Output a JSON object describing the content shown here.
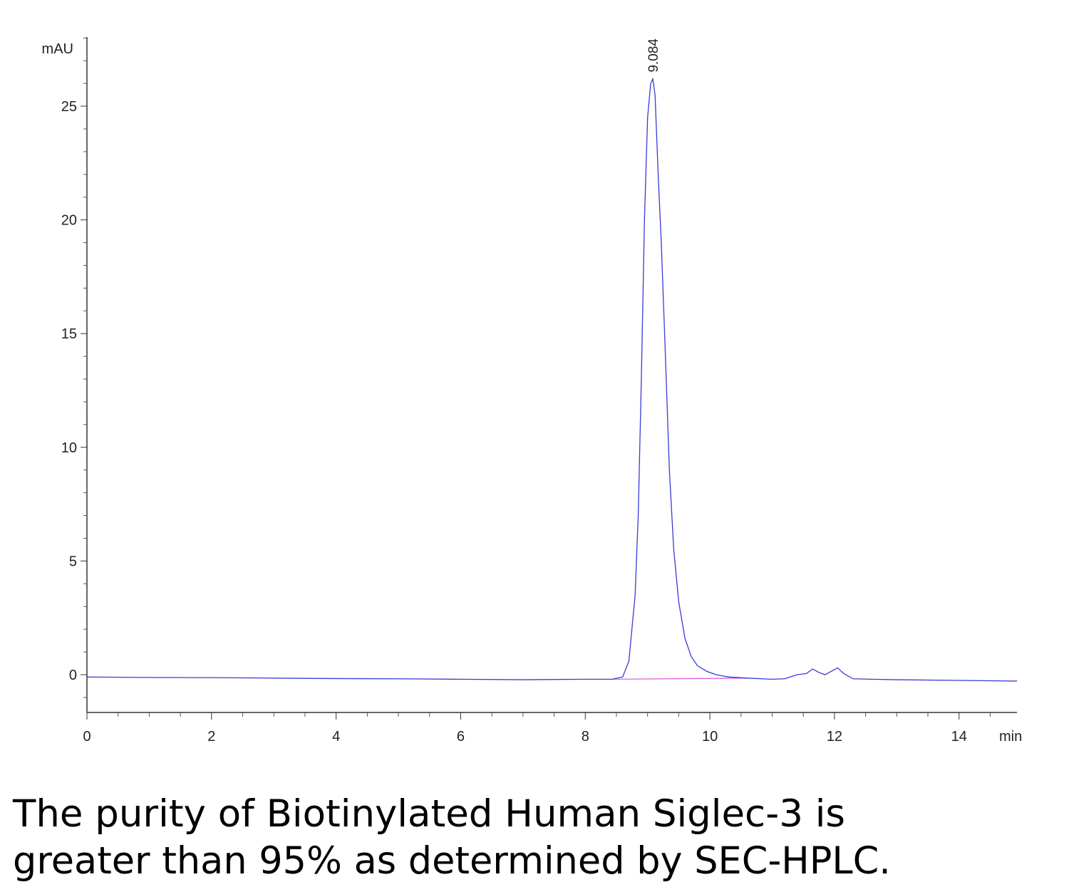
{
  "chart_data": {
    "type": "line",
    "ylabel": "mAU",
    "xlabel": "min",
    "annotations": [
      {
        "text": "9.084",
        "x": 9.084
      }
    ],
    "caption": [
      "The purity of Biotinylated Human Siglec-3 is",
      "greater than 95% as determined by SEC-HPLC."
    ],
    "xlim": [
      0,
      14.93
    ],
    "ylim": [
      -1.66,
      28.04
    ],
    "xticks": [
      0,
      2,
      4,
      6,
      8,
      10,
      12,
      14
    ],
    "yticks": [
      0,
      5,
      10,
      15,
      20,
      25
    ],
    "xminorticks": [
      0.5,
      1,
      1.5,
      2.5,
      3,
      3.5,
      4.5,
      5,
      5.5,
      6.5,
      7,
      7.5,
      8.5,
      9,
      9.5,
      10.5,
      11,
      11.5,
      12.5,
      13,
      13.5,
      14.5
    ],
    "yminorticks": [
      -1,
      1,
      2,
      3,
      4,
      6,
      7,
      8,
      9,
      11,
      12,
      13,
      14,
      16,
      17,
      18,
      19,
      21,
      22,
      23,
      24,
      26,
      27,
      28
    ],
    "grid": false,
    "series": [
      {
        "color": "#3a3ad8",
        "x": [
          0,
          1,
          2,
          3,
          4,
          5,
          6,
          7,
          8,
          8.43,
          8.6,
          8.7,
          8.8,
          8.85,
          8.9,
          8.95,
          9.0,
          9.05,
          9.084,
          9.12,
          9.17,
          9.22,
          9.28,
          9.35,
          9.42,
          9.5,
          9.6,
          9.7,
          9.8,
          9.95,
          10.1,
          10.3,
          10.6,
          11,
          11.2,
          11.4,
          11.55,
          11.65,
          11.75,
          11.85,
          11.95,
          12.05,
          12.15,
          12.3,
          12.6,
          13,
          14,
          14.93
        ],
        "values": [
          -0.1,
          -0.12,
          -0.13,
          -0.15,
          -0.17,
          -0.18,
          -0.2,
          -0.22,
          -0.2,
          -0.2,
          -0.1,
          0.6,
          3.5,
          7,
          13,
          20,
          24.5,
          26,
          26.2,
          25.5,
          22,
          19,
          14.5,
          9,
          5.5,
          3.2,
          1.6,
          0.8,
          0.4,
          0.15,
          0,
          -0.1,
          -0.15,
          -0.2,
          -0.18,
          0,
          0.05,
          0.25,
          0.1,
          0,
          0.15,
          0.3,
          0.05,
          -0.18,
          -0.2,
          -0.22,
          -0.25,
          -0.28
        ]
      },
      {
        "color": "#e060e0",
        "x": [
          8.43,
          10.6
        ],
        "values": [
          -0.2,
          -0.15
        ]
      }
    ]
  }
}
